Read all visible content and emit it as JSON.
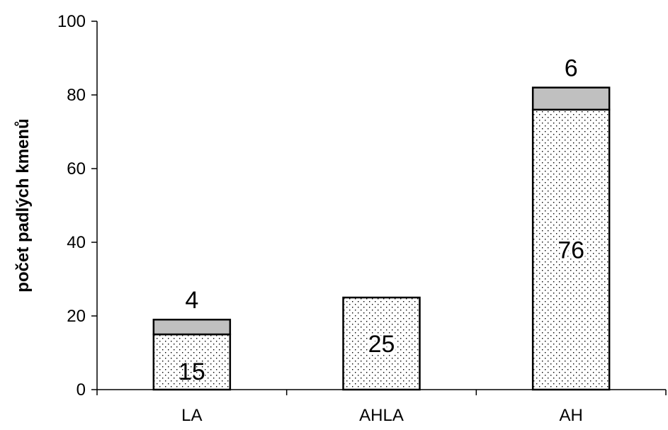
{
  "chart_data": {
    "type": "bar",
    "stacked": true,
    "categories": [
      "LA",
      "AHLA",
      "AH"
    ],
    "series": [
      {
        "values": [
          15,
          25,
          76
        ],
        "pattern": "dotted",
        "color": "#ffffff"
      },
      {
        "values": [
          4,
          0,
          6
        ],
        "pattern": "solid",
        "color": "#c0c0c0"
      }
    ],
    "data_labels": [
      [
        "15",
        "25",
        "76"
      ],
      [
        "4",
        "",
        "6"
      ]
    ],
    "xlabel": "",
    "ylabel": "počet padlých kmenů",
    "ylim": [
      0,
      100
    ],
    "yticks": [
      0,
      20,
      40,
      60,
      80,
      100
    ],
    "grid": false,
    "legend": "none"
  }
}
